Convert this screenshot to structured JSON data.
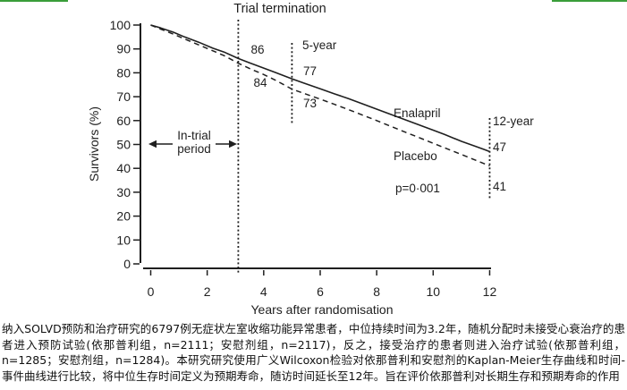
{
  "decorations": {
    "top_border_color": "#3a9d3a"
  },
  "chart_data": {
    "type": "line",
    "title": "Trial termination",
    "xlabel": "Years after randomisation",
    "ylabel": "Survivors (%)",
    "xlim": [
      0,
      12
    ],
    "ylim": [
      0,
      100
    ],
    "x_ticks": [
      0,
      2,
      4,
      6,
      8,
      10,
      12
    ],
    "y_ticks": [
      0,
      10,
      20,
      30,
      40,
      50,
      60,
      70,
      80,
      90,
      100
    ],
    "grid": false,
    "legend_position": "inline-labels",
    "series": [
      {
        "name": "Enalapril",
        "line_style": "solid",
        "color": "#1f1f1f",
        "points": [
          [
            0,
            100
          ],
          [
            0.35,
            98.8
          ],
          [
            0.8,
            97
          ],
          [
            1.2,
            95
          ],
          [
            1.7,
            92.8
          ],
          [
            2.2,
            90.3
          ],
          [
            2.6,
            88.7
          ],
          [
            3.1,
            86
          ],
          [
            3.5,
            84.2
          ],
          [
            4,
            82
          ],
          [
            4.4,
            80.2
          ],
          [
            5,
            77.5
          ],
          [
            5.4,
            75.8
          ],
          [
            6,
            73.3
          ],
          [
            6.5,
            71.2
          ],
          [
            7,
            69.2
          ],
          [
            7.5,
            67
          ],
          [
            8,
            64.8
          ],
          [
            8.5,
            62.6
          ],
          [
            9,
            60.4
          ],
          [
            9.5,
            58.2
          ],
          [
            10,
            56
          ],
          [
            10.4,
            54.2
          ],
          [
            11,
            51.3
          ],
          [
            11.5,
            49.2
          ],
          [
            11.85,
            47.7
          ],
          [
            12,
            47
          ]
        ]
      },
      {
        "name": "Placebo",
        "line_style": "dashed",
        "color": "#1f1f1f",
        "points": [
          [
            0,
            100
          ],
          [
            0.35,
            98.3
          ],
          [
            0.8,
            96.2
          ],
          [
            1.2,
            94.2
          ],
          [
            1.7,
            91.7
          ],
          [
            2.2,
            89.2
          ],
          [
            2.6,
            87.2
          ],
          [
            3.1,
            84
          ],
          [
            3.5,
            81.8
          ],
          [
            4,
            79.3
          ],
          [
            4.4,
            77
          ],
          [
            5,
            73.2
          ],
          [
            5.4,
            71.5
          ],
          [
            6,
            69
          ],
          [
            6.5,
            66.8
          ],
          [
            7,
            64.6
          ],
          [
            7.5,
            62.3
          ],
          [
            8,
            60
          ],
          [
            8.5,
            57.6
          ],
          [
            9,
            55.2
          ],
          [
            9.5,
            52.9
          ],
          [
            10,
            50.5
          ],
          [
            10.4,
            48.6
          ],
          [
            11,
            45.8
          ],
          [
            11.5,
            43.4
          ],
          [
            12,
            41
          ]
        ]
      }
    ],
    "reference_lines": [
      {
        "name": "trial-termination-line",
        "x": 3.1
      },
      {
        "name": "five-year-line",
        "x": 5
      },
      {
        "name": "twelve-year-line",
        "x": 12
      }
    ],
    "milestones": [
      {
        "label": "Trial termination",
        "enalapril": 86,
        "placebo": 84
      },
      {
        "label": "5-year",
        "enalapril": 77,
        "placebo": 73
      },
      {
        "label": "12-year",
        "enalapril": 47,
        "placebo": 41
      }
    ],
    "annotations": {
      "tt_enalapril": "86",
      "tt_placebo": "84",
      "five_year": "5-year",
      "fy_enalapril": "77",
      "fy_placebo": "73",
      "twelve_year": "12-year",
      "ty_enalapril": "47",
      "ty_placebo": "41",
      "enalapril": "Enalapril",
      "placebo": "Placebo",
      "p_value": "p=0·001",
      "in_trial_1": "In-trial",
      "in_trial_2": "period"
    }
  },
  "caption": {
    "text": "纳入SOLVD预防和治疗研究的6797例无症状左室收缩功能异常患者，中位持续时间为3.2年，随机分配时未接受心衰治疗的患者进入预防试验(依那普利组，n=2111；安慰剂组，n=2117)，反之，接受治疗的患者则进入治疗试验(依那普利组，n=1285；安慰剂组，n=1284)。本研究研究使用广义Wilcoxon检验对依那普利和安慰剂的Kaplan-Meier生存曲线和时间-事件曲线进行比较，将中位生存时间定义为预期寿命，随访时间延长至12年。旨在评价依那普利对长期生存和预期寿命的作用"
  }
}
